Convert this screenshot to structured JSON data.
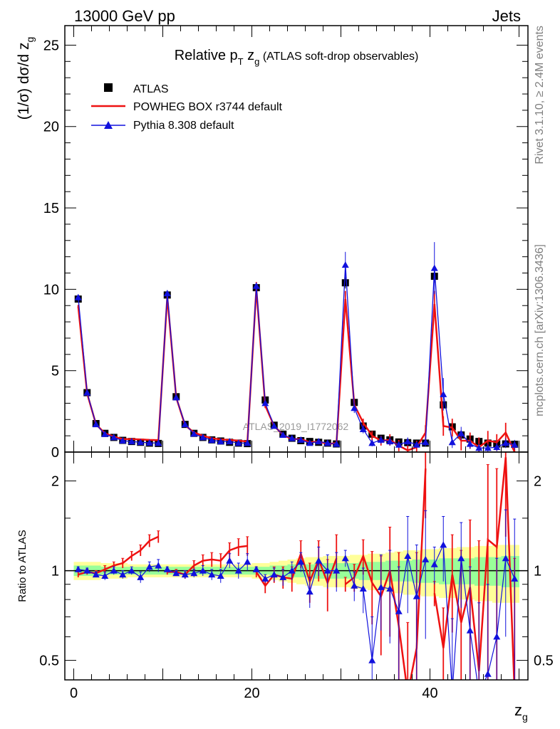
{
  "header": {
    "left": "13000 GeV pp",
    "right": "Jets"
  },
  "side_text": {
    "rivet": "Rivet 3.1.10, ≥ 2.4M events",
    "mcplots": "mcplots.cern.ch [arXiv:1306.3436]"
  },
  "watermark": "ATLAS_2019_I1772062",
  "colors": {
    "atlas": "#000000",
    "powheg": "#ee1111",
    "pythia": "#1111dd",
    "band_yellow": "#ffff99",
    "band_green": "#99ff99"
  },
  "chart_data": [
    {
      "type": "scatter",
      "title_main": "Relative p",
      "title_sub1": "T",
      "title_mid": " z",
      "title_sub2": "g",
      "title_tail": " (ATLAS soft-drop observables)",
      "ylabel_main": "(1/σ) dσ/d z",
      "ylabel_sub": "g",
      "ylim": [
        0,
        26.2
      ],
      "yticks": [
        0,
        5,
        10,
        15,
        20,
        25
      ],
      "ytick_labels": [
        "0",
        "5",
        "10",
        "15",
        "20",
        "25"
      ],
      "legend_position": "top-left",
      "legend": [
        "ATLAS",
        "POWHEG BOX r3744 default",
        "Pythia 8.308 default"
      ],
      "x": [
        0.5,
        1.5,
        2.5,
        3.5,
        4.5,
        5.5,
        6.5,
        7.5,
        8.5,
        9.5,
        10.5,
        11.5,
        12.5,
        13.5,
        14.5,
        15.5,
        16.5,
        17.5,
        18.5,
        19.5,
        20.5,
        21.5,
        22.5,
        23.5,
        24.5,
        25.5,
        26.5,
        27.5,
        28.5,
        29.5,
        30.5,
        31.5,
        32.5,
        33.5,
        34.5,
        35.5,
        36.5,
        37.5,
        38.5,
        39.5,
        40.5,
        41.5,
        42.5,
        43.5,
        44.5,
        45.5,
        46.5,
        47.5,
        48.5,
        49.5
      ],
      "series": [
        {
          "name": "ATLAS",
          "marker": "square",
          "values": [
            9.4,
            3.65,
            1.75,
            1.15,
            0.9,
            0.72,
            0.65,
            0.6,
            0.55,
            0.53,
            9.65,
            3.4,
            1.7,
            1.15,
            0.9,
            0.75,
            0.68,
            0.6,
            0.55,
            0.52,
            10.1,
            3.2,
            1.65,
            1.1,
            0.85,
            0.7,
            0.65,
            0.6,
            0.55,
            0.5,
            10.4,
            3.05,
            1.6,
            1.1,
            0.85,
            0.75,
            0.62,
            0.58,
            0.55,
            0.55,
            10.8,
            2.9,
            1.55,
            1.05,
            0.8,
            0.65,
            0.55,
            0.5,
            0.5,
            0.48
          ],
          "errors": [
            0.2,
            0.1,
            0.06,
            0.05,
            0.04,
            0.04,
            0.03,
            0.03,
            0.03,
            0.03,
            0.25,
            0.1,
            0.06,
            0.05,
            0.04,
            0.04,
            0.04,
            0.03,
            0.03,
            0.03,
            0.3,
            0.12,
            0.07,
            0.05,
            0.05,
            0.04,
            0.04,
            0.04,
            0.04,
            0.04,
            0.35,
            0.15,
            0.08,
            0.06,
            0.06,
            0.06,
            0.05,
            0.05,
            0.05,
            0.05,
            0.4,
            0.2,
            0.1,
            0.08,
            0.07,
            0.07,
            0.06,
            0.06,
            0.06,
            0.06
          ]
        },
        {
          "name": "POWHEG BOX r3744 default",
          "values": [
            8.95,
            3.6,
            1.7,
            1.15,
            0.95,
            0.8,
            0.8,
            0.78,
            0.75,
            0.73,
            9.55,
            3.35,
            1.65,
            1.2,
            1.0,
            0.85,
            0.78,
            0.75,
            0.7,
            0.65,
            10.05,
            2.85,
            1.6,
            1.05,
            0.8,
            0.8,
            0.6,
            0.65,
            0.5,
            0.55,
            9.4,
            2.9,
            1.8,
            1.0,
            0.7,
            0.75,
            0.4,
            0.1,
            0.3,
            1.2,
            9.1,
            1.6,
            1.5,
            0.7,
            0.7,
            0.3,
            0.7,
            0.6,
            1.2,
            0.0
          ],
          "errors": [
            0.1,
            0.06,
            0.04,
            0.03,
            0.03,
            0.03,
            0.03,
            0.03,
            0.03,
            0.03,
            0.15,
            0.08,
            0.05,
            0.04,
            0.04,
            0.04,
            0.04,
            0.04,
            0.04,
            0.04,
            0.4,
            0.15,
            0.1,
            0.1,
            0.1,
            0.1,
            0.1,
            0.12,
            0.12,
            0.15,
            0.5,
            0.3,
            0.25,
            0.3,
            0.3,
            0.35,
            0.35,
            0.3,
            0.4,
            0.45,
            0.8,
            0.6,
            0.55,
            0.6,
            0.5,
            0.6,
            0.6,
            0.5,
            0.6,
            0.5
          ]
        },
        {
          "name": "Pythia 8.308 default",
          "marker": "triangle",
          "values": [
            9.5,
            3.65,
            1.7,
            1.1,
            0.9,
            0.7,
            0.65,
            0.6,
            0.57,
            0.55,
            9.75,
            3.35,
            1.7,
            1.12,
            0.9,
            0.73,
            0.65,
            0.65,
            0.55,
            0.55,
            10.2,
            3.0,
            1.6,
            1.05,
            0.85,
            0.75,
            0.55,
            0.65,
            0.55,
            0.5,
            11.5,
            2.7,
            1.4,
            0.55,
            0.75,
            0.65,
            0.45,
            0.65,
            0.45,
            0.6,
            11.3,
            3.55,
            0.6,
            1.15,
            0.5,
            0.25,
            0.25,
            0.3,
            0.55,
            0.45
          ],
          "errors": [
            0.1,
            0.06,
            0.04,
            0.03,
            0.03,
            0.03,
            0.03,
            0.03,
            0.03,
            0.03,
            0.2,
            0.08,
            0.05,
            0.04,
            0.04,
            0.04,
            0.04,
            0.04,
            0.04,
            0.04,
            0.2,
            0.12,
            0.08,
            0.06,
            0.06,
            0.06,
            0.06,
            0.07,
            0.07,
            0.08,
            0.8,
            0.3,
            0.25,
            0.2,
            0.25,
            0.25,
            0.2,
            0.25,
            0.2,
            0.25,
            1.6,
            1.0,
            0.35,
            0.4,
            0.3,
            0.25,
            0.25,
            0.25,
            0.3,
            0.3
          ]
        }
      ]
    },
    {
      "type": "line",
      "ylabel": "Ratio to ATLAS",
      "xlabel_main": "z",
      "xlabel_sub": "g",
      "xlim": [
        -1,
        51
      ],
      "ylim": [
        0.43,
        2.5
      ],
      "yscale": "log",
      "yticks": [
        0.5,
        1,
        2
      ],
      "ytick_labels": [
        "0.5",
        "1",
        "2"
      ],
      "xticks": [
        0,
        20,
        40
      ],
      "xtick_labels": [
        "0",
        "20",
        "40"
      ],
      "x": [
        0.5,
        1.5,
        2.5,
        3.5,
        4.5,
        5.5,
        6.5,
        7.5,
        8.5,
        9.5,
        10.5,
        11.5,
        12.5,
        13.5,
        14.5,
        15.5,
        16.5,
        17.5,
        18.5,
        19.5,
        20.5,
        21.5,
        22.5,
        23.5,
        24.5,
        25.5,
        26.5,
        27.5,
        28.5,
        29.5,
        30.5,
        31.5,
        32.5,
        33.5,
        34.5,
        35.5,
        36.5,
        37.5,
        38.5,
        39.5,
        40.5,
        41.5,
        42.5,
        43.5,
        44.5,
        45.5,
        46.5,
        47.5,
        48.5,
        49.5
      ],
      "band_yellow_halfwidth": [
        0.07,
        0.07,
        0.07,
        0.06,
        0.06,
        0.06,
        0.05,
        0.05,
        0.05,
        0.05,
        0.05,
        0.05,
        0.05,
        0.05,
        0.05,
        0.05,
        0.05,
        0.05,
        0.05,
        0.05,
        0.06,
        0.06,
        0.07,
        0.08,
        0.09,
        0.1,
        0.11,
        0.11,
        0.12,
        0.12,
        0.12,
        0.13,
        0.13,
        0.14,
        0.14,
        0.15,
        0.16,
        0.17,
        0.17,
        0.18,
        0.18,
        0.19,
        0.19,
        0.2,
        0.2,
        0.21,
        0.21,
        0.22,
        0.22,
        0.22
      ],
      "band_green_halfwidth": [
        0.04,
        0.04,
        0.04,
        0.03,
        0.03,
        0.03,
        0.03,
        0.03,
        0.03,
        0.03,
        0.03,
        0.03,
        0.03,
        0.03,
        0.03,
        0.03,
        0.03,
        0.03,
        0.03,
        0.03,
        0.03,
        0.03,
        0.04,
        0.04,
        0.05,
        0.05,
        0.05,
        0.06,
        0.06,
        0.06,
        0.06,
        0.06,
        0.07,
        0.07,
        0.07,
        0.08,
        0.08,
        0.08,
        0.09,
        0.09,
        0.09,
        0.1,
        0.1,
        0.1,
        0.1,
        0.11,
        0.11,
        0.11,
        0.12,
        0.12
      ],
      "series": [
        {
          "name": "POWHEG BOX r3744 default",
          "values": [
            0.97,
            0.99,
            0.98,
            1.01,
            1.04,
            1.06,
            1.12,
            1.17,
            1.26,
            1.3,
            0.99,
            0.99,
            0.97,
            1.04,
            1.08,
            1.09,
            1.08,
            1.17,
            1.2,
            1.21,
            0.99,
            0.89,
            0.97,
            0.95,
            0.94,
            1.14,
            0.92,
            1.09,
            0.91,
            1.1,
            0.9,
            0.95,
            1.12,
            0.91,
            0.82,
            1.0,
            0.65,
            0.17,
            0.55,
            2.2,
            0.84,
            0.55,
            0.97,
            0.67,
            0.88,
            0.46,
            1.27,
            1.2,
            2.4,
            0.0
          ],
          "errors": [
            0.02,
            0.02,
            0.02,
            0.03,
            0.03,
            0.04,
            0.04,
            0.05,
            0.06,
            0.06,
            0.02,
            0.02,
            0.03,
            0.04,
            0.05,
            0.06,
            0.06,
            0.07,
            0.08,
            0.09,
            0.04,
            0.05,
            0.06,
            0.08,
            0.09,
            0.12,
            0.14,
            0.17,
            0.18,
            0.22,
            0.05,
            0.1,
            0.15,
            0.25,
            0.3,
            0.4,
            0.5,
            0.5,
            0.6,
            0.7,
            0.08,
            0.2,
            0.35,
            0.5,
            0.6,
            0.8,
            1.0,
            1.0,
            1.1,
            1.1
          ]
        },
        {
          "name": "Pythia 8.308 default",
          "marker": "triangle",
          "values": [
            1.01,
            1.0,
            0.97,
            0.96,
            1.0,
            0.97,
            1.0,
            0.95,
            1.03,
            1.04,
            1.01,
            0.98,
            0.97,
            0.98,
            1.0,
            0.97,
            0.96,
            1.08,
            1.0,
            1.07,
            1.01,
            0.94,
            0.97,
            0.95,
            1.0,
            1.07,
            0.85,
            1.08,
            1.0,
            1.0,
            1.1,
            0.89,
            0.87,
            0.5,
            0.88,
            0.87,
            0.73,
            1.12,
            0.82,
            1.09,
            1.05,
            1.22,
            0.39,
            1.1,
            0.63,
            0.38,
            0.45,
            0.6,
            1.1,
            0.94
          ],
          "errors": [
            0.02,
            0.02,
            0.02,
            0.03,
            0.03,
            0.03,
            0.03,
            0.04,
            0.04,
            0.05,
            0.02,
            0.02,
            0.03,
            0.03,
            0.04,
            0.04,
            0.05,
            0.06,
            0.06,
            0.07,
            0.02,
            0.03,
            0.05,
            0.06,
            0.07,
            0.08,
            0.1,
            0.12,
            0.13,
            0.15,
            0.07,
            0.1,
            0.15,
            0.2,
            0.25,
            0.3,
            0.3,
            0.4,
            0.4,
            0.5,
            0.15,
            0.3,
            0.3,
            0.35,
            0.4,
            0.4,
            0.45,
            0.5,
            0.5,
            0.55
          ]
        }
      ]
    }
  ]
}
